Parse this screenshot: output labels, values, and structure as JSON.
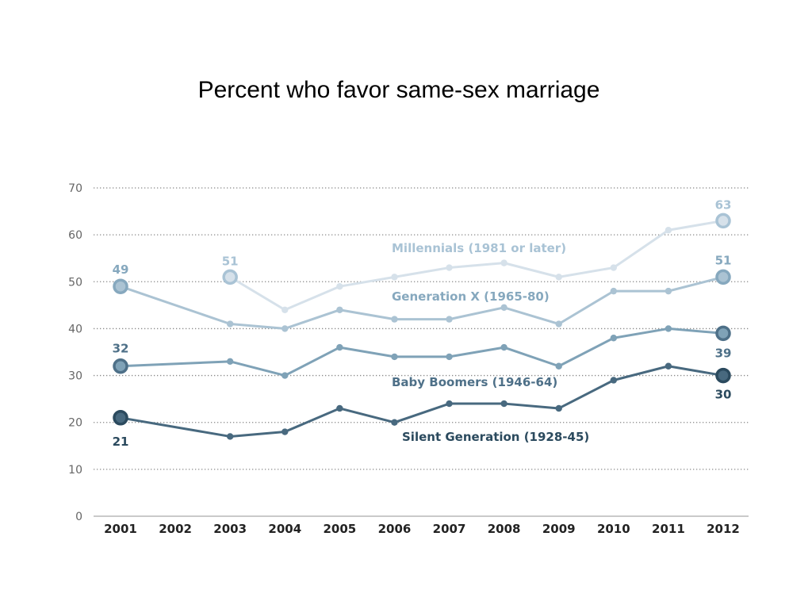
{
  "title": "Percent who favor same-sex marriage",
  "chart_data": {
    "type": "line",
    "title": "Percent who favor same-sex marriage",
    "xlabel": "",
    "ylabel": "",
    "ylim": [
      0,
      70
    ],
    "yticks": [
      0,
      10,
      20,
      30,
      40,
      50,
      60,
      70
    ],
    "categories": [
      "2001",
      "2002",
      "2003",
      "2004",
      "2005",
      "2006",
      "2007",
      "2008",
      "2009",
      "2010",
      "2011",
      "2012"
    ],
    "grid": "horizontal dotted",
    "series": [
      {
        "name": "Millennials (1981 or later)",
        "color": "#d6e1ea",
        "label_color": "#a9c3d5",
        "x": [
          "2003",
          "2004",
          "2005",
          "2006",
          "2007",
          "2008",
          "2009",
          "2010",
          "2011",
          "2012"
        ],
        "values": [
          51,
          44,
          49,
          51,
          53,
          54,
          51,
          53,
          61,
          63
        ],
        "start_label": "51",
        "end_label": "63"
      },
      {
        "name": "Generation X (1965-80)",
        "color": "#abc3d3",
        "label_color": "#86a8be",
        "x": [
          "2001",
          "2003",
          "2004",
          "2005",
          "2006",
          "2007",
          "2008",
          "2009",
          "2010",
          "2011",
          "2012"
        ],
        "values": [
          49,
          41,
          40,
          44,
          42,
          42,
          44.5,
          41,
          48,
          48,
          51
        ],
        "start_label": "49",
        "end_label": "51"
      },
      {
        "name": "Baby Boomers (1946-64)",
        "color": "#7fa2b7",
        "label_color": "#4e7088",
        "x": [
          "2001",
          "2003",
          "2004",
          "2005",
          "2006",
          "2007",
          "2008",
          "2009",
          "2010",
          "2011",
          "2012"
        ],
        "values": [
          32,
          33,
          30,
          36,
          34,
          34,
          36,
          32,
          38,
          40,
          39
        ],
        "start_label": "32",
        "end_label": "39"
      },
      {
        "name": "Silent Generation (1928-45)",
        "color": "#48697f",
        "label_color": "#2b4a5e",
        "x": [
          "2001",
          "2003",
          "2004",
          "2005",
          "2006",
          "2007",
          "2008",
          "2009",
          "2010",
          "2011",
          "2012"
        ],
        "values": [
          21,
          17,
          18,
          23,
          20,
          24,
          24,
          23,
          29,
          32,
          30
        ],
        "start_label": "21",
        "end_label": "30"
      }
    ]
  }
}
